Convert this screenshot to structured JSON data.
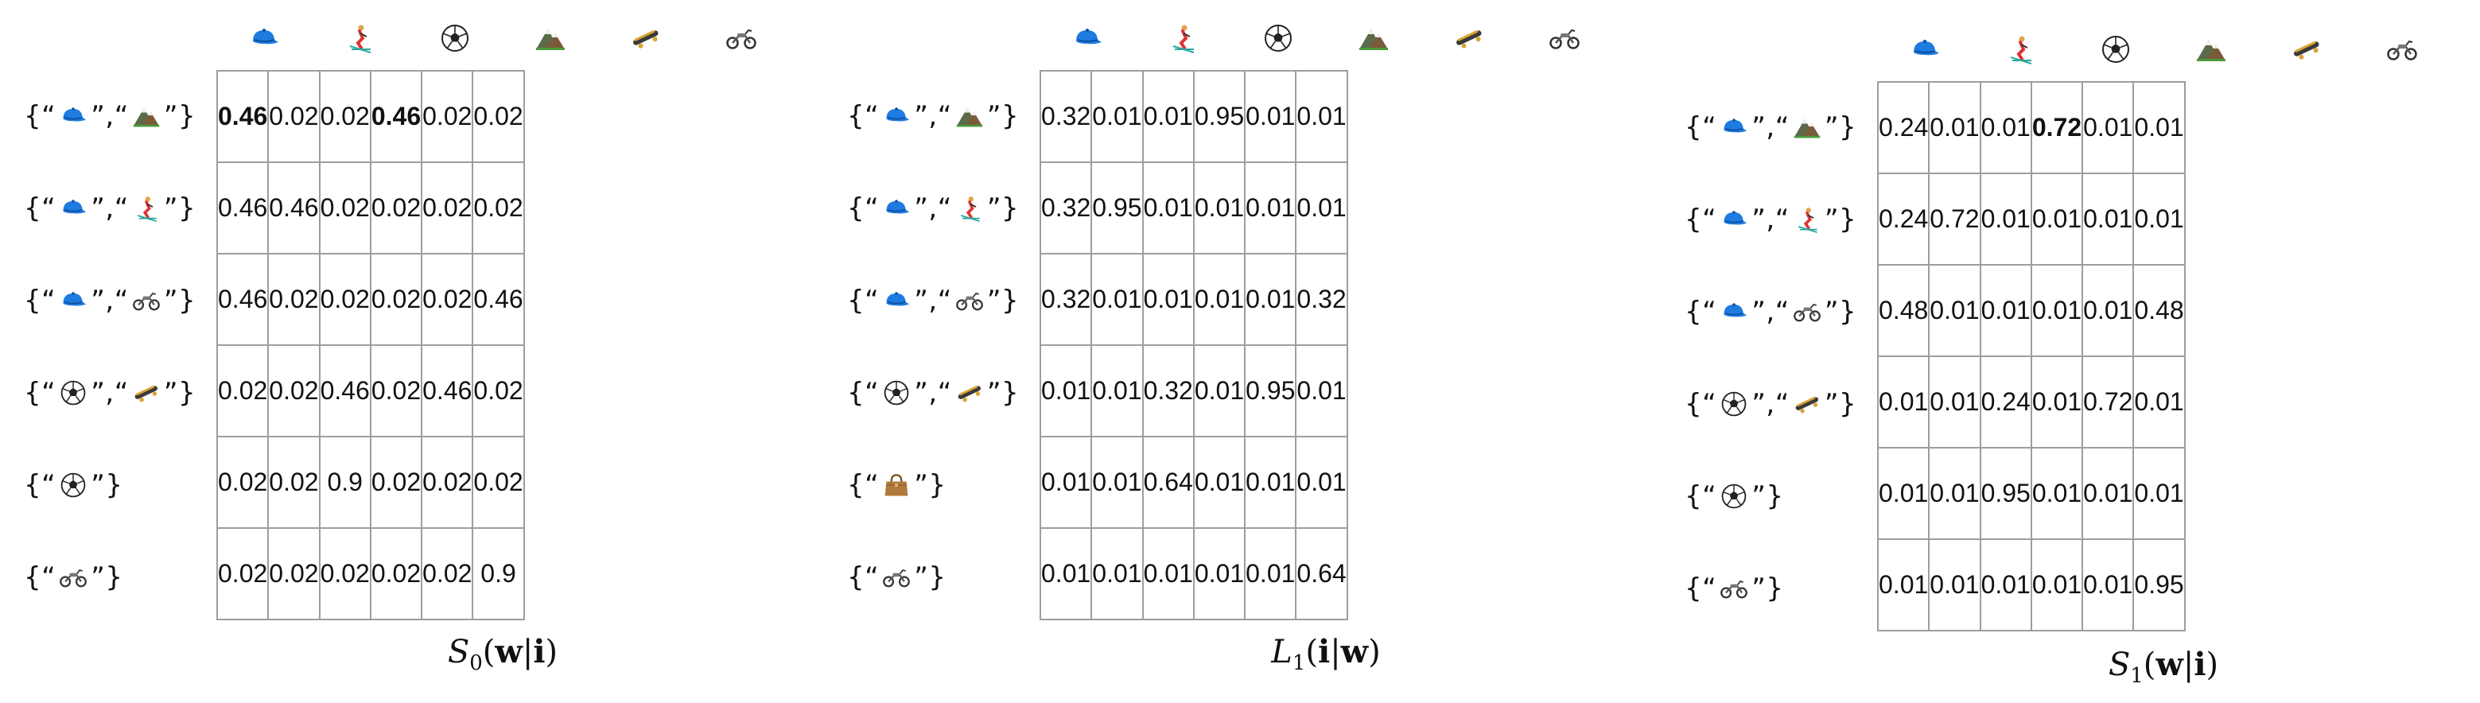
{
  "icons": [
    "cap-icon",
    "skier-icon",
    "soccer-ball-icon",
    "mountain-icon",
    "skateboard-icon",
    "motorcycle-icon"
  ],
  "row_labels": [
    {
      "icons": [
        "cap-icon",
        "mountain-icon"
      ]
    },
    {
      "icons": [
        "cap-icon",
        "skier-icon"
      ]
    },
    {
      "icons": [
        "cap-icon",
        "motorcycle-icon"
      ]
    },
    {
      "icons": [
        "soccer-ball-icon",
        "skateboard-icon"
      ]
    },
    {
      "icons": [
        "soccer-ball-icon"
      ]
    },
    {
      "icons": [
        "motorcycle-icon"
      ]
    }
  ],
  "row_labels_mid": [
    {
      "icons": [
        "cap-icon",
        "mountain-icon"
      ]
    },
    {
      "icons": [
        "cap-icon",
        "skier-icon"
      ]
    },
    {
      "icons": [
        "cap-icon",
        "motorcycle-icon"
      ]
    },
    {
      "icons": [
        "soccer-ball-icon",
        "skateboard-icon"
      ]
    },
    {
      "icons": [
        "handbag-icon"
      ]
    },
    {
      "icons": [
        "motorcycle-icon"
      ]
    }
  ],
  "panels": [
    {
      "caption": {
        "sym": "S",
        "sub": "0",
        "a": "w",
        "b": "i"
      },
      "rows": [
        [
          "0.46",
          "0.02",
          "0.02",
          "0.46",
          "0.02",
          "0.02"
        ],
        [
          "0.46",
          "0.46",
          "0.02",
          "0.02",
          "0.02",
          "0.02"
        ],
        [
          "0.46",
          "0.02",
          "0.02",
          "0.02",
          "0.02",
          "0.46"
        ],
        [
          "0.02",
          "0.02",
          "0.46",
          "0.02",
          "0.46",
          "0.02"
        ],
        [
          "0.02",
          "0.02",
          "0.9",
          "0.02",
          "0.02",
          "0.02"
        ],
        [
          "0.02",
          "0.02",
          "0.02",
          "0.02",
          "0.02",
          "0.9"
        ]
      ],
      "bold": [
        [
          0,
          0
        ],
        [
          0,
          3
        ]
      ]
    },
    {
      "caption": {
        "sym": "L",
        "sub": "1",
        "a": "i",
        "b": "w"
      },
      "rows": [
        [
          "0.32",
          "0.01",
          "0.01",
          "0.95",
          "0.01",
          "0.01"
        ],
        [
          "0.32",
          "0.95",
          "0.01",
          "0.01",
          "0.01",
          "0.01"
        ],
        [
          "0.32",
          "0.01",
          "0.01",
          "0.01",
          "0.01",
          "0.32"
        ],
        [
          "0.01",
          "0.01",
          "0.32",
          "0.01",
          "0.95",
          "0.01"
        ],
        [
          "0.01",
          "0.01",
          "0.64",
          "0.01",
          "0.01",
          "0.01"
        ],
        [
          "0.01",
          "0.01",
          "0.01",
          "0.01",
          "0.01",
          "0.64"
        ]
      ],
      "bold": []
    },
    {
      "caption": {
        "sym": "S",
        "sub": "1",
        "a": "w",
        "b": "i"
      },
      "rows": [
        [
          "0.24",
          "0.01",
          "0.01",
          "0.72",
          "0.01",
          "0.01"
        ],
        [
          "0.24",
          "0.72",
          "0.01",
          "0.01",
          "0.01",
          "0.01"
        ],
        [
          "0.48",
          "0.01",
          "0.01",
          "0.01",
          "0.01",
          "0.48"
        ],
        [
          "0.01",
          "0.01",
          "0.24",
          "0.01",
          "0.72",
          "0.01"
        ],
        [
          "0.01",
          "0.01",
          "0.95",
          "0.01",
          "0.01",
          "0.01"
        ],
        [
          "0.01",
          "0.01",
          "0.01",
          "0.01",
          "0.01",
          "0.95"
        ]
      ],
      "bold": [
        [
          0,
          3
        ]
      ]
    }
  ],
  "colors": {
    "grid": "#9e9e9e",
    "cap": "#1e7be0",
    "ball": "#222222",
    "bag": "#b07a3c"
  }
}
